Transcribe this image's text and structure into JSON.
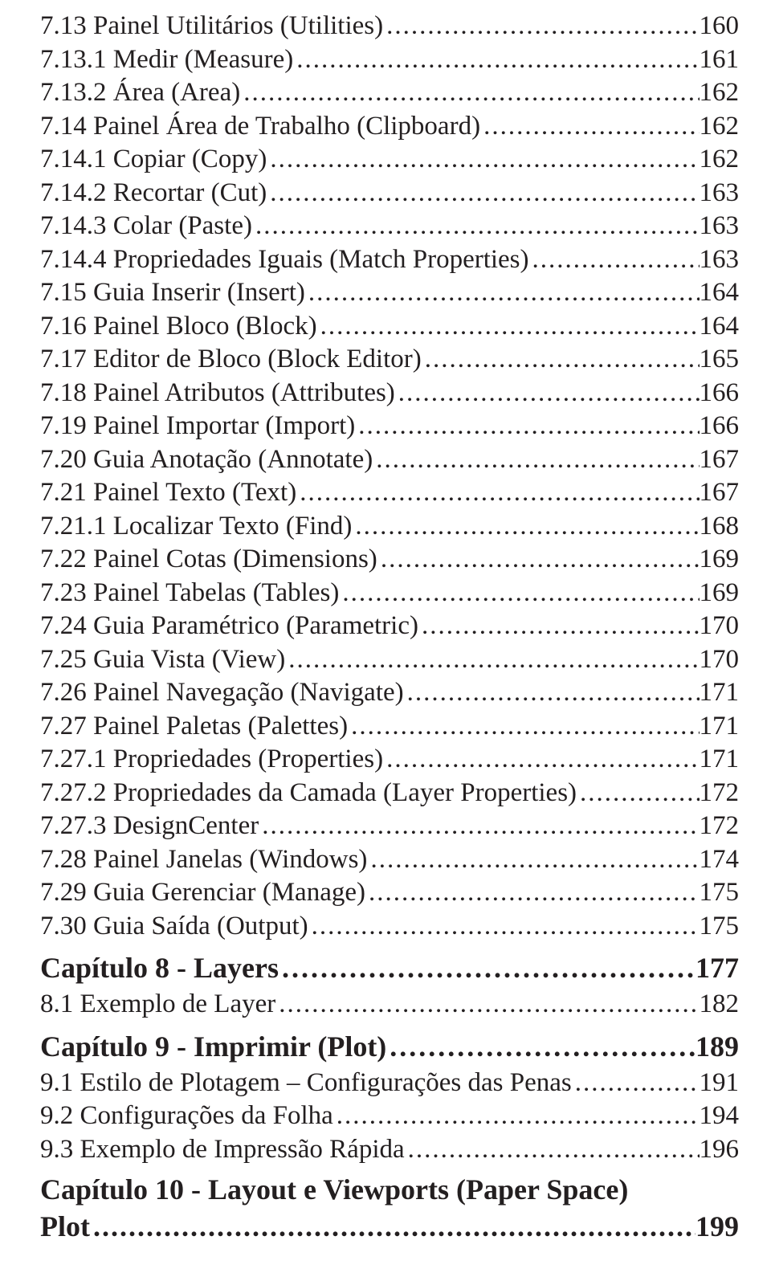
{
  "text_color": "#231f20",
  "background_color": "#ffffff",
  "entries": [
    {
      "level": "section",
      "title": "7.13 Painel Utilitários (Utilities)",
      "page": "160"
    },
    {
      "level": "section",
      "title": "7.13.1 Medir (Measure)",
      "page": "161"
    },
    {
      "level": "section",
      "title": "7.13.2 Área (Area)",
      "page": "162"
    },
    {
      "level": "section",
      "title": "7.14 Painel Área de Trabalho (Clipboard)",
      "page": "162"
    },
    {
      "level": "section",
      "title": "7.14.1 Copiar (Copy)",
      "page": "162"
    },
    {
      "level": "section",
      "title": "7.14.2 Recortar (Cut)",
      "page": "163"
    },
    {
      "level": "section",
      "title": "7.14.3 Colar (Paste)",
      "page": "163"
    },
    {
      "level": "section",
      "title": "7.14.4 Propriedades Iguais (Match Properties)",
      "page": "163"
    },
    {
      "level": "section",
      "title": "7.15 Guia Inserir (Insert)",
      "page": "164"
    },
    {
      "level": "section",
      "title": "7.16 Painel Bloco (Block)",
      "page": "164"
    },
    {
      "level": "section",
      "title": "7.17 Editor de Bloco (Block Editor)",
      "page": "165"
    },
    {
      "level": "section",
      "title": "7.18 Painel Atributos (Attributes)",
      "page": "166"
    },
    {
      "level": "section",
      "title": "7.19 Painel Importar (Import)",
      "page": "166"
    },
    {
      "level": "section",
      "title": "7.20 Guia Anotação (Annotate)",
      "page": "167"
    },
    {
      "level": "section",
      "title": "7.21 Painel Texto (Text)",
      "page": "167"
    },
    {
      "level": "section",
      "title": "7.21.1 Localizar Texto (Find)",
      "page": "168"
    },
    {
      "level": "section",
      "title": "7.22 Painel Cotas (Dimensions)",
      "page": "169"
    },
    {
      "level": "section",
      "title": "7.23 Painel Tabelas (Tables)",
      "page": "169"
    },
    {
      "level": "section",
      "title": "7.24 Guia Paramétrico (Parametric)",
      "page": "170"
    },
    {
      "level": "section",
      "title": "7.25 Guia Vista (View)",
      "page": "170"
    },
    {
      "level": "section",
      "title": "7.26 Painel Navegação (Navigate)",
      "page": "171"
    },
    {
      "level": "section",
      "title": "7.27 Painel Paletas (Palettes)",
      "page": "171"
    },
    {
      "level": "section",
      "title": "7.27.1 Propriedades (Properties)",
      "page": "171"
    },
    {
      "level": "section",
      "title": "7.27.2 Propriedades da Camada (Layer Properties)",
      "page": "172"
    },
    {
      "level": "section",
      "title": "7.27.3 DesignCenter",
      "page": "172"
    },
    {
      "level": "section",
      "title": "7.28 Painel Janelas (Windows)",
      "page": "174"
    },
    {
      "level": "section",
      "title": "7.29 Guia Gerenciar (Manage)",
      "page": "175"
    },
    {
      "level": "section",
      "title": "7.30 Guia Saída (Output)",
      "page": "175"
    },
    {
      "level": "chapter",
      "title": "Capítulo 8 - Layers",
      "page": "177"
    },
    {
      "level": "section",
      "title": "8.1 Exemplo de Layer",
      "page": "182"
    },
    {
      "level": "chapter",
      "title": "Capítulo 9 - Imprimir (Plot)",
      "page": "189"
    },
    {
      "level": "section",
      "title": "9.1 Estilo de Plotagem – Configurações das Penas",
      "page": "191"
    },
    {
      "level": "section",
      "title": "9.2 Configurações da Folha",
      "page": "194"
    },
    {
      "level": "section",
      "title": "9.3 Exemplo de Impressão Rápida",
      "page": "196"
    },
    {
      "level": "chapter-wrap",
      "title_line1": "Capítulo 10 - Layout e Viewports (Paper Space)",
      "title_line2": "Plot",
      "page": "199"
    }
  ]
}
